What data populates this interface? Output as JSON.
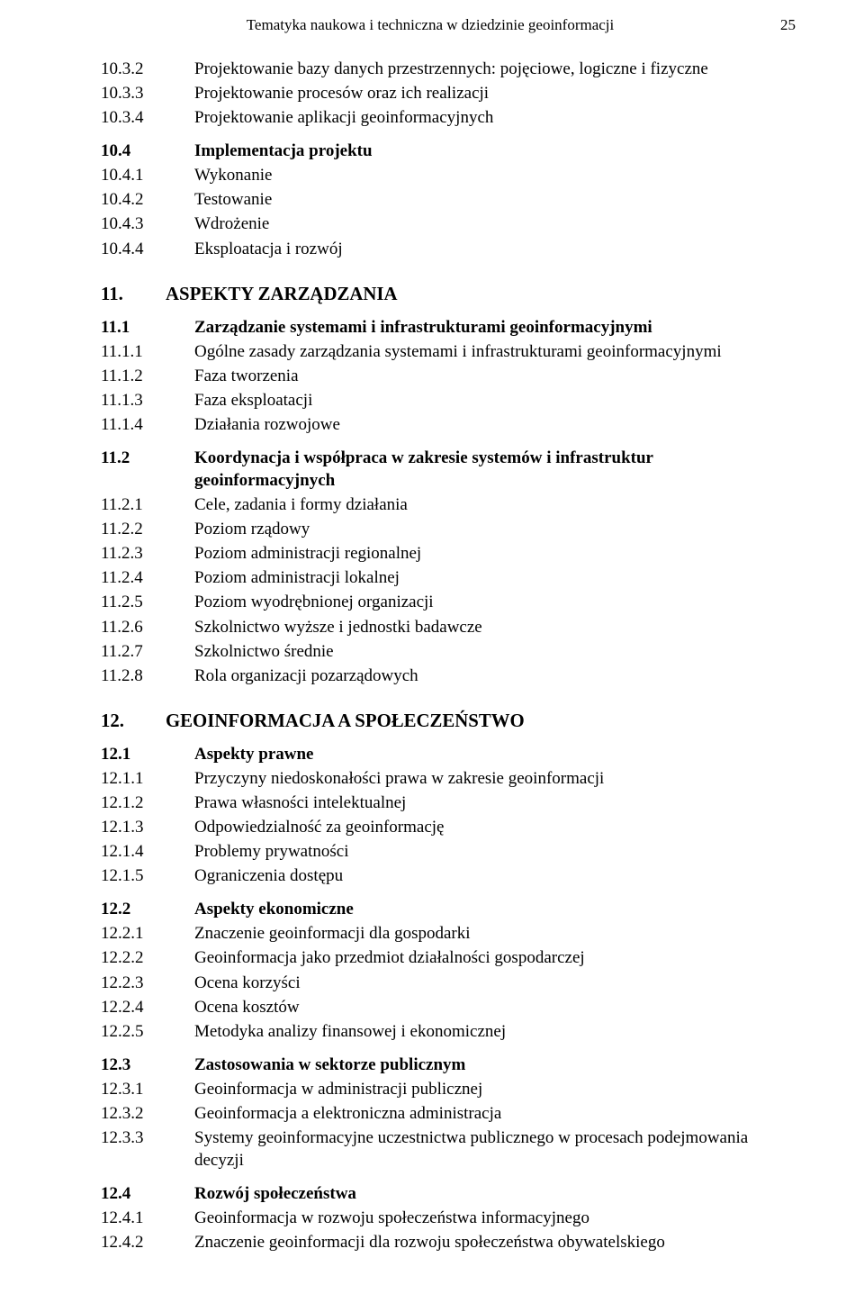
{
  "header": {
    "title": "Tematyka naukowa i techniczna w dziedzinie geoinformacji",
    "page": "25"
  },
  "s10": {
    "i1": {
      "n": "10.3.2",
      "t": "Projektowanie bazy danych przestrzennych: pojęciowe, logiczne i fizyczne"
    },
    "i2": {
      "n": "10.3.3",
      "t": "Projektowanie procesów oraz ich realizacji"
    },
    "i3": {
      "n": "10.3.4",
      "t": "Projektowanie aplikacji geoinformacyjnych"
    },
    "h4": {
      "n": "10.4",
      "t": "Implementacja projektu"
    },
    "i5": {
      "n": "10.4.1",
      "t": "Wykonanie"
    },
    "i6": {
      "n": "10.4.2",
      "t": "Testowanie"
    },
    "i7": {
      "n": "10.4.3",
      "t": "Wdrożenie"
    },
    "i8": {
      "n": "10.4.4",
      "t": "Eksploatacja i rozwój"
    }
  },
  "s11": {
    "heading": {
      "n": "11.",
      "t": "ASPEKTY ZARZĄDZANIA"
    },
    "h1": {
      "n": "11.1",
      "t": "Zarządzanie systemami i infrastrukturami geoinformacyjnymi"
    },
    "i1": {
      "n": "11.1.1",
      "t": "Ogólne zasady zarządzania systemami i infrastrukturami geoinformacyjnymi"
    },
    "i2": {
      "n": "11.1.2",
      "t": "Faza tworzenia"
    },
    "i3": {
      "n": "11.1.3",
      "t": "Faza eksploatacji"
    },
    "i4": {
      "n": "11.1.4",
      "t": "Działania rozwojowe"
    },
    "h2": {
      "n": "11.2",
      "t": "Koordynacja i współpraca w zakresie systemów i infrastruktur geoinformacyjnych"
    },
    "i5": {
      "n": "11.2.1",
      "t": "Cele, zadania i formy działania"
    },
    "i6": {
      "n": "11.2.2",
      "t": "Poziom rządowy"
    },
    "i7": {
      "n": "11.2.3",
      "t": "Poziom administracji regionalnej"
    },
    "i8": {
      "n": "11.2.4",
      "t": "Poziom administracji lokalnej"
    },
    "i9": {
      "n": "11.2.5",
      "t": "Poziom wyodrębnionej organizacji"
    },
    "i10": {
      "n": "11.2.6",
      "t": "Szkolnictwo wyższe i jednostki badawcze"
    },
    "i11": {
      "n": "11.2.7",
      "t": "Szkolnictwo średnie"
    },
    "i12": {
      "n": "11.2.8",
      "t": "Rola organizacji pozarządowych"
    }
  },
  "s12": {
    "heading": {
      "n": "12.",
      "t": "GEOINFORMACJA A SPOŁECZEŃSTWO"
    },
    "h1": {
      "n": "12.1",
      "t": "Aspekty prawne"
    },
    "i1": {
      "n": "12.1.1",
      "t": "Przyczyny niedoskonałości prawa w zakresie geoinformacji"
    },
    "i2": {
      "n": "12.1.2",
      "t": "Prawa własności intelektualnej"
    },
    "i3": {
      "n": "12.1.3",
      "t": "Odpowiedzialność za geoinformację"
    },
    "i4": {
      "n": "12.1.4",
      "t": "Problemy prywatności"
    },
    "i5": {
      "n": "12.1.5",
      "t": "Ograniczenia dostępu"
    },
    "h2": {
      "n": "12.2",
      "t": "Aspekty ekonomiczne"
    },
    "i6": {
      "n": "12.2.1",
      "t": "Znaczenie geoinformacji dla gospodarki"
    },
    "i7": {
      "n": "12.2.2",
      "t": "Geoinformacja jako przedmiot działalności gospodarczej"
    },
    "i8": {
      "n": "12.2.3",
      "t": "Ocena korzyści"
    },
    "i9": {
      "n": "12.2.4",
      "t": "Ocena kosztów"
    },
    "i10": {
      "n": "12.2.5",
      "t": "Metodyka analizy finansowej i ekonomicznej"
    },
    "h3": {
      "n": "12.3",
      "t": "Zastosowania w sektorze publicznym"
    },
    "i11": {
      "n": "12.3.1",
      "t": "Geoinformacja w administracji publicznej"
    },
    "i12": {
      "n": "12.3.2",
      "t": "Geoinformacja a elektroniczna administracja"
    },
    "i13": {
      "n": "12.3.3",
      "t": "Systemy geoinformacyjne uczestnictwa publicznego w procesach podejmowania decyzji"
    },
    "h4": {
      "n": "12.4",
      "t": "Rozwój społeczeństwa"
    },
    "i14": {
      "n": "12.4.1",
      "t": "Geoinformacja w rozwoju społeczeństwa informacyjnego"
    },
    "i15": {
      "n": "12.4.2",
      "t": "Znaczenie geoinformacji dla rozwoju społeczeństwa obywatelskiego"
    }
  }
}
